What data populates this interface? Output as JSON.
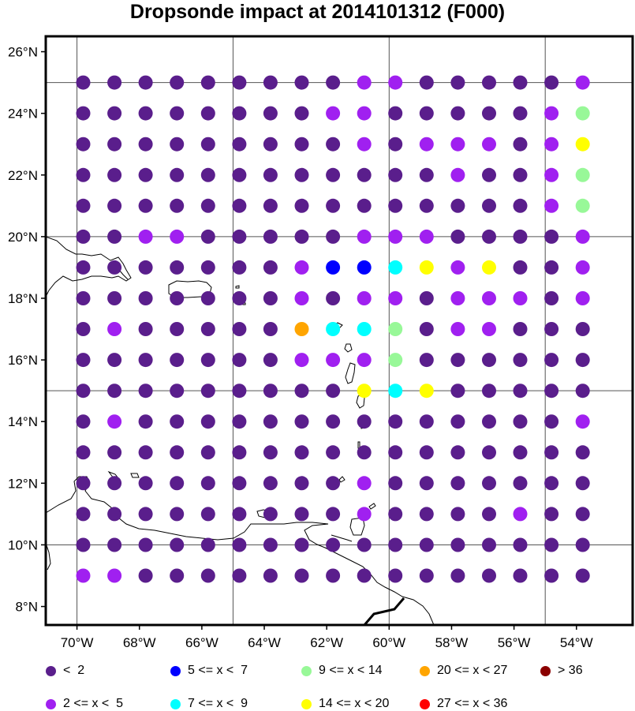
{
  "title": "Dropsonde impact at 2014101312 (F000)",
  "map": {
    "lon_range": [
      -71,
      -52.2
    ],
    "lat_range": [
      7.4,
      26.5
    ],
    "lon_ticks": [
      "70°W",
      "68°W",
      "66°W",
      "64°W",
      "62°W",
      "60°W",
      "58°W",
      "56°W",
      "54°W"
    ],
    "lat_ticks": [
      "8°N",
      "10°N",
      "12°N",
      "14°N",
      "16°N",
      "18°N",
      "20°N",
      "22°N",
      "24°N",
      "26°N"
    ],
    "grid_lon": [
      -70,
      -65,
      -60,
      -55
    ],
    "grid_lat": [
      10,
      15,
      20,
      25
    ]
  },
  "grid_points": {
    "lons": [
      -69.8,
      -68.8,
      -67.8,
      -66.8,
      -65.8,
      -64.8,
      -63.8,
      -62.8,
      -61.8,
      -60.8,
      -59.8,
      -58.8,
      -57.8,
      -56.8,
      -55.8,
      -54.8,
      -53.8
    ],
    "lats": [
      25,
      24,
      23,
      22,
      21,
      20,
      19,
      18,
      17,
      16,
      15,
      14,
      13,
      12,
      11,
      10,
      9
    ],
    "class_rows": [
      "00000000011000001",
      "00000000110000014",
      "00000000010111015",
      "00000000000010014",
      "00000000000000014",
      "00110000011100001",
      "00000001223515001",
      "00000001011011101",
      "01000006334011000",
      "00000001114000000",
      "00000000053500000",
      "01000000000000001",
      "00000000000000000",
      "00000000010000000",
      "00000000010000100",
      "00000000000000000",
      "11000000000000000"
    ]
  },
  "legend": {
    "colors": [
      "#5a1e8c",
      "#a020f0",
      "#0000ff",
      "#00ffff",
      "#98f898",
      "#ffff00",
      "#ffa500",
      "#ff0000",
      "#8b0000"
    ],
    "items": [
      {
        "label": "<  2",
        "class": 0
      },
      {
        "label": "5 <= x <  7",
        "class": 2
      },
      {
        "label": "9 <= x < 14",
        "class": 4
      },
      {
        "label": "20 <= x < 27",
        "class": 6
      },
      {
        "label": "> 36",
        "class": 8
      },
      {
        "label": "2 <= x <  5",
        "class": 1
      },
      {
        "label": "7 <= x <  9",
        "class": 3
      },
      {
        "label": "14 <= x < 20",
        "class": 5
      },
      {
        "label": "27 <= x < 36",
        "class": 7
      }
    ]
  }
}
